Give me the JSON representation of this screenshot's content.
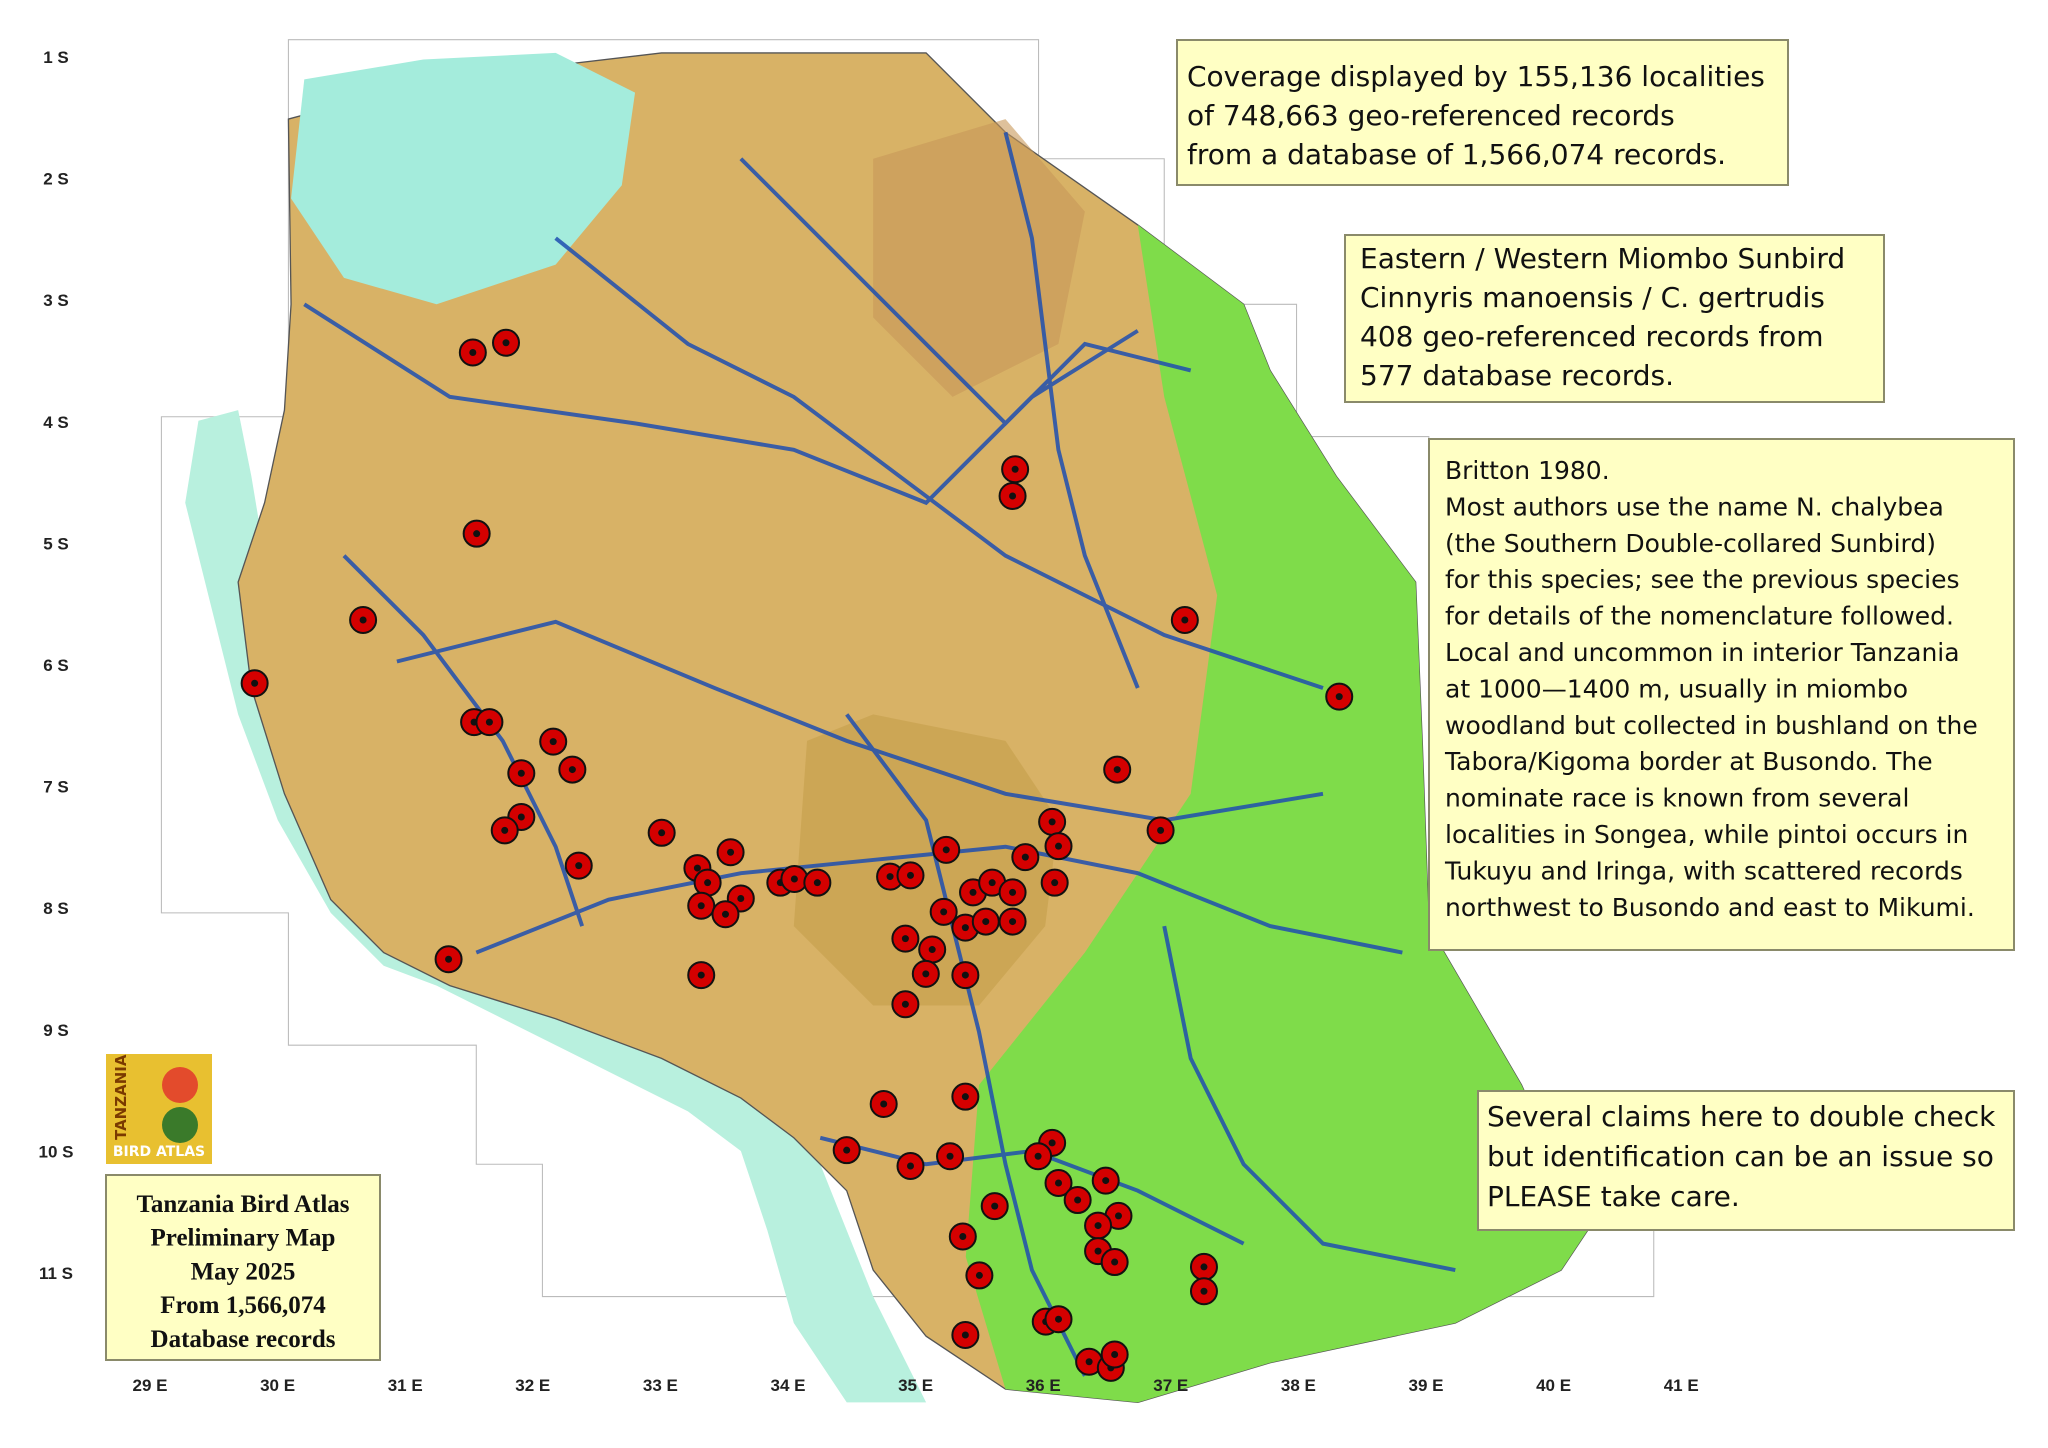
{
  "map": {
    "lat_ticks": [
      {
        "value": -1,
        "label": "1 S"
      },
      {
        "value": -2,
        "label": "2 S"
      },
      {
        "value": -3,
        "label": "3 S"
      },
      {
        "value": -4,
        "label": "4 S"
      },
      {
        "value": -5,
        "label": "5 S"
      },
      {
        "value": -6,
        "label": "6 S"
      },
      {
        "value": -7,
        "label": "7 S"
      },
      {
        "value": -8,
        "label": "8 S"
      },
      {
        "value": -9,
        "label": "9 S"
      },
      {
        "value": -10,
        "label": "10 S"
      },
      {
        "value": -11,
        "label": "11 S"
      }
    ],
    "lon_ticks": [
      {
        "value": 29,
        "label": "29 E"
      },
      {
        "value": 30,
        "label": "30 E"
      },
      {
        "value": 31,
        "label": "31 E"
      },
      {
        "value": 32,
        "label": "32 E"
      },
      {
        "value": 33,
        "label": "33 E"
      },
      {
        "value": 34,
        "label": "34 E"
      },
      {
        "value": 35,
        "label": "35 E"
      },
      {
        "value": 36,
        "label": "36 E"
      },
      {
        "value": 37,
        "label": "37 E"
      },
      {
        "value": 38,
        "label": "38 E"
      },
      {
        "value": 39,
        "label": "39 E"
      },
      {
        "value": 40,
        "label": "40 E"
      },
      {
        "value": 41,
        "label": "41 E"
      }
    ],
    "marker_color": "#d40000",
    "records": [
      [
        31.53,
        -3.43
      ],
      [
        31.79,
        -3.35
      ],
      [
        31.56,
        -4.92
      ],
      [
        30.67,
        -5.63
      ],
      [
        29.82,
        -6.15
      ],
      [
        31.54,
        -6.47
      ],
      [
        31.66,
        -6.47
      ],
      [
        32.16,
        -6.63
      ],
      [
        31.91,
        -6.89
      ],
      [
        32.31,
        -6.86
      ],
      [
        31.91,
        -7.25
      ],
      [
        31.78,
        -7.36
      ],
      [
        32.36,
        -7.65
      ],
      [
        31.34,
        -8.42
      ],
      [
        33.01,
        -7.38
      ],
      [
        33.29,
        -7.67
      ],
      [
        33.55,
        -7.54
      ],
      [
        33.37,
        -7.79
      ],
      [
        33.32,
        -7.98
      ],
      [
        33.63,
        -7.92
      ],
      [
        33.51,
        -8.05
      ],
      [
        33.32,
        -8.55
      ],
      [
        33.94,
        -7.79
      ],
      [
        34.05,
        -7.76
      ],
      [
        34.23,
        -7.79
      ],
      [
        34.8,
        -7.74
      ],
      [
        34.96,
        -7.73
      ],
      [
        35.24,
        -7.52
      ],
      [
        34.92,
        -8.25
      ],
      [
        35.13,
        -8.34
      ],
      [
        35.08,
        -8.54
      ],
      [
        35.39,
        -8.55
      ],
      [
        34.92,
        -8.79
      ],
      [
        35.39,
        -8.16
      ],
      [
        35.22,
        -8.03
      ],
      [
        35.45,
        -7.87
      ],
      [
        35.6,
        -7.79
      ],
      [
        35.76,
        -7.87
      ],
      [
        35.55,
        -8.11
      ],
      [
        35.86,
        -7.58
      ],
      [
        36.07,
        -7.29
      ],
      [
        36.12,
        -7.49
      ],
      [
        36.09,
        -7.79
      ],
      [
        35.76,
        -8.11
      ],
      [
        35.78,
        -4.39
      ],
      [
        35.76,
        -4.61
      ],
      [
        37.11,
        -5.63
      ],
      [
        36.58,
        -6.86
      ],
      [
        36.92,
        -7.36
      ],
      [
        38.32,
        -6.26
      ],
      [
        34.75,
        -9.61
      ],
      [
        35.39,
        -9.55
      ],
      [
        34.46,
        -9.99
      ],
      [
        34.96,
        -10.12
      ],
      [
        35.27,
        -10.04
      ],
      [
        36.07,
        -9.93
      ],
      [
        35.96,
        -10.04
      ],
      [
        36.12,
        -10.26
      ],
      [
        36.27,
        -10.4
      ],
      [
        36.49,
        -10.24
      ],
      [
        36.59,
        -10.53
      ],
      [
        36.43,
        -10.61
      ],
      [
        36.43,
        -10.82
      ],
      [
        36.56,
        -10.91
      ],
      [
        35.62,
        -10.45
      ],
      [
        35.37,
        -10.7
      ],
      [
        35.5,
        -11.02
      ],
      [
        35.39,
        -11.51
      ],
      [
        36.02,
        -11.4
      ],
      [
        36.12,
        -11.38
      ],
      [
        37.26,
        -10.95
      ],
      [
        37.26,
        -11.15
      ],
      [
        36.36,
        -11.73
      ],
      [
        36.53,
        -11.78
      ],
      [
        36.56,
        -11.67
      ]
    ]
  },
  "boxes": {
    "coverage": [
      "Coverage displayed by 155,136 localities",
      "of 748,663 geo-referenced records",
      "from a database of 1,566,074 records."
    ],
    "species": [
      "Eastern / Western Miombo Sunbird",
      "Cinnyris manoensis / C. gertrudis",
      "408 geo-referenced records from",
      "577 database records."
    ],
    "notes": [
      "Britton 1980.",
      "Most authors use the name N. chalybea",
      "(the Southern Double-collared Sunbird)",
      "for this species; see the previous species",
      "for details of the nomenclature followed.",
      "Local and uncommon in interior Tanzania",
      "at 1000—1400 m, usually in miombo",
      "woodland but collected in bushland on the",
      "Tabora/Kigoma border at Busondo. The",
      "nominate race is known from several",
      "localities in Songea, while pintoi occurs in",
      "Tukuyu and Iringa, with scattered records",
      "northwest to Busondo and east to Mikumi."
    ],
    "caution": [
      "Several claims here to double check",
      "but identification can be an issue so",
      "PLEASE take care."
    ]
  },
  "legend": [
    "Tanzania Bird Atlas",
    "Preliminary Map",
    "May 2025",
    "From 1,566,074",
    "Database records"
  ],
  "logo": {
    "top": "TANZANIA",
    "bottom": "BIRD ATLAS"
  }
}
